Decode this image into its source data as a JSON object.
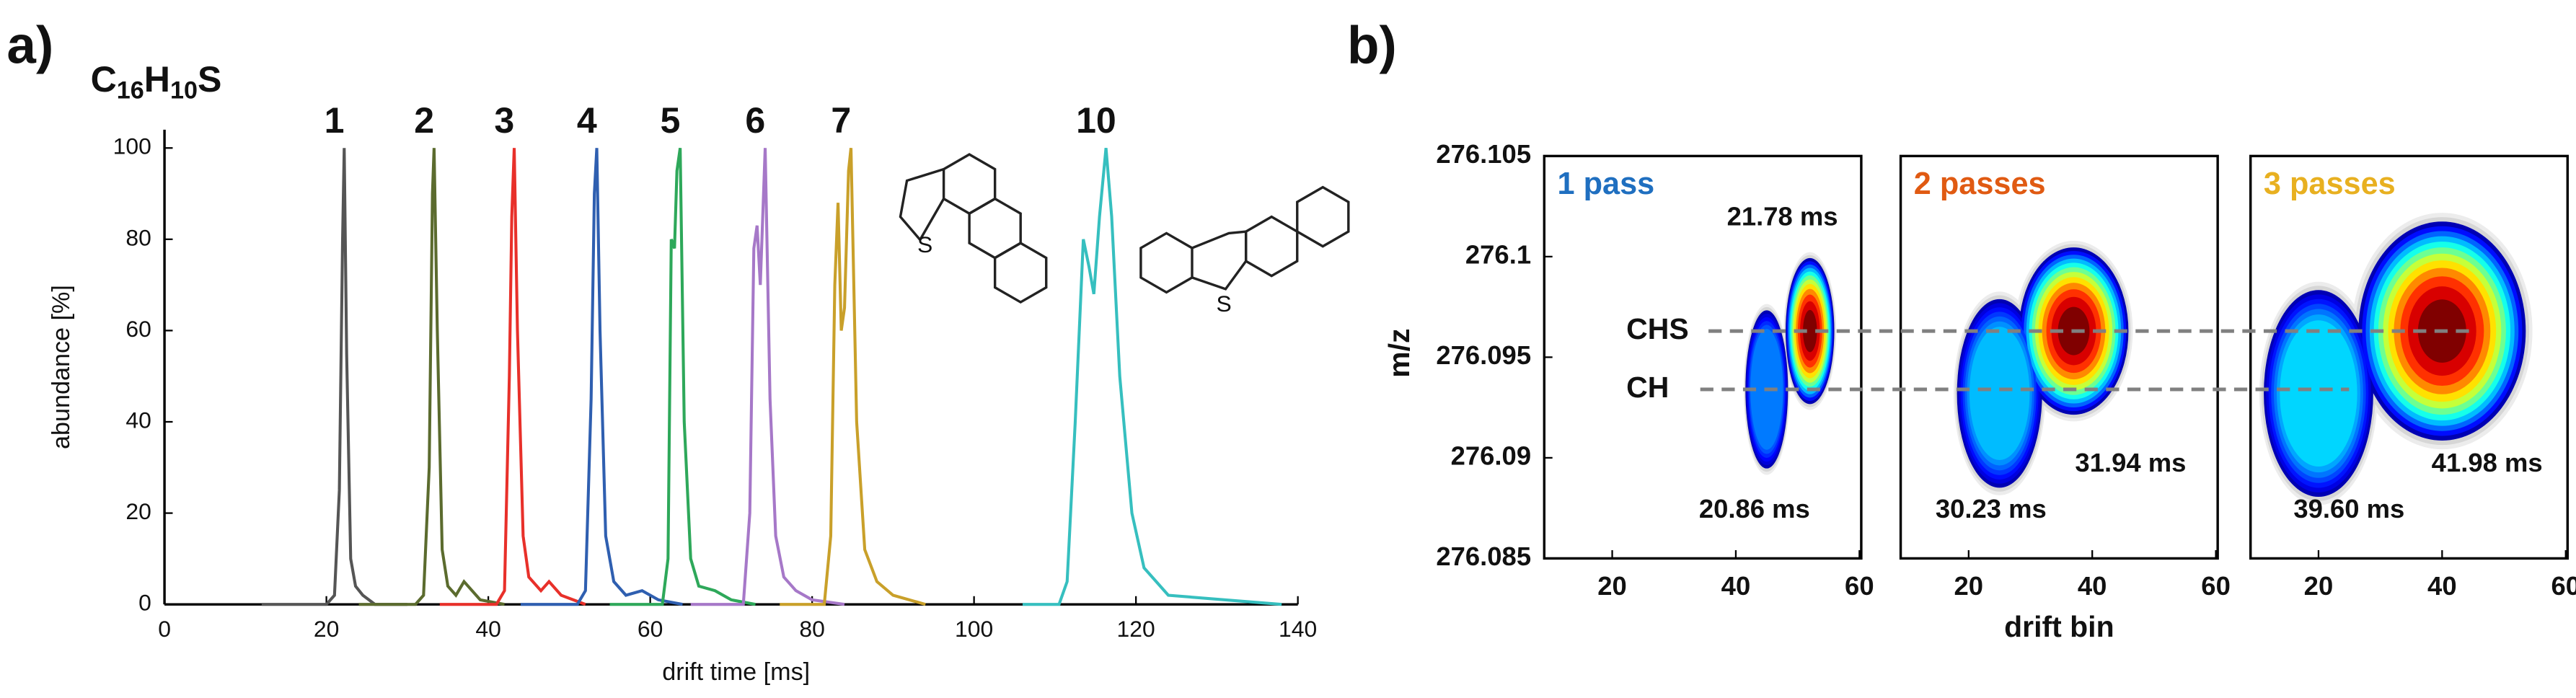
{
  "panel_labels": [
    "a)",
    "b)"
  ],
  "chart_data": [
    {
      "type": "line",
      "title": [
        "C",
        "16",
        "H",
        "10",
        "S"
      ],
      "xlabel": "drift time [ms]",
      "ylabel": "abundance [%]",
      "xlim": [
        0,
        140
      ],
      "xticks": [
        0,
        20,
        40,
        60,
        80,
        100,
        120,
        140
      ],
      "ylim": [
        0,
        104
      ],
      "yticks": [
        0,
        20,
        40,
        60,
        80,
        100
      ],
      "structure_labels": [
        "S",
        "S"
      ],
      "series": [
        {
          "name": "1",
          "color": "#555555",
          "x": [
            12,
            20,
            21,
            21.6,
            22,
            22.2,
            22.5,
            23,
            23.6,
            24.5,
            26,
            30
          ],
          "values": [
            0,
            0,
            2,
            25,
            80,
            100,
            55,
            10,
            4,
            2,
            0,
            0
          ]
        },
        {
          "name": "2",
          "color": "#5b6b2e",
          "x": [
            24,
            31,
            32,
            32.7,
            33.1,
            33.3,
            33.7,
            34.3,
            35,
            36,
            37,
            39,
            42
          ],
          "values": [
            0,
            0,
            2,
            30,
            90,
            100,
            60,
            12,
            4,
            2,
            5,
            1,
            0
          ]
        },
        {
          "name": "3",
          "color": "#e8302a",
          "x": [
            34,
            41,
            42,
            42.6,
            42.9,
            43.2,
            43.6,
            44.3,
            45,
            46.5,
            47.5,
            49,
            52
          ],
          "values": [
            0,
            0,
            3,
            50,
            85,
            100,
            60,
            15,
            6,
            3,
            5,
            2,
            0
          ]
        },
        {
          "name": "4",
          "color": "#2f5fb0",
          "x": [
            44,
            51,
            52,
            52.7,
            53.1,
            53.4,
            53.8,
            54.5,
            55.5,
            57,
            59,
            61,
            64
          ],
          "values": [
            0,
            0,
            3,
            45,
            90,
            100,
            60,
            15,
            5,
            2,
            3,
            1,
            0
          ]
        },
        {
          "name": "5",
          "color": "#2ea85a",
          "x": [
            55,
            61.5,
            62.2,
            62.6,
            63,
            63.3,
            63.7,
            64.2,
            65,
            66,
            68,
            70,
            73
          ],
          "values": [
            0,
            0,
            10,
            80,
            78,
            95,
            100,
            40,
            10,
            4,
            3,
            1,
            0
          ]
        },
        {
          "name": "6",
          "color": "#a678c8",
          "x": [
            65,
            71.5,
            72.3,
            72.8,
            73.2,
            73.6,
            74.2,
            74.8,
            75.5,
            76.5,
            78,
            80,
            84
          ],
          "values": [
            0,
            0,
            20,
            78,
            83,
            70,
            100,
            45,
            15,
            6,
            3,
            1,
            0
          ]
        },
        {
          "name": "7",
          "color": "#c9a02a",
          "x": [
            76,
            81.5,
            82.3,
            82.8,
            83.2,
            83.6,
            84,
            84.5,
            84.8,
            85.5,
            86.5,
            88,
            90,
            94
          ],
          "values": [
            0,
            0,
            15,
            70,
            88,
            60,
            65,
            95,
            100,
            40,
            12,
            5,
            2,
            0
          ]
        },
        {
          "name": "10",
          "color": "#36bfbf",
          "x": [
            106,
            110.5,
            111.5,
            112.5,
            113.5,
            114.2,
            114.8,
            115.5,
            116.3,
            117,
            118,
            119.5,
            121,
            124,
            138
          ],
          "values": [
            0,
            0,
            5,
            40,
            80,
            74,
            68,
            85,
            100,
            85,
            50,
            20,
            8,
            2,
            0
          ]
        }
      ]
    },
    {
      "type": "heatmap",
      "title": "1 pass",
      "title_color": "#1f6fc0",
      "ylabel": "m/z",
      "xlim": [
        9,
        60.3
      ],
      "xticks": [
        20,
        40,
        60
      ],
      "ylim": [
        276.085,
        276.105
      ],
      "yticks": [
        276.085,
        276.09,
        276.095,
        276.1,
        276.105
      ],
      "peaks": {
        "x": [
          45,
          52
        ],
        "y": [
          276.0934,
          276.0963
        ],
        "intensity": [
          0.45,
          1
        ]
      },
      "annotations": [
        "21.78 ms",
        "20.86 ms"
      ],
      "reference_lines": [
        {
          "label": "CHS",
          "y": 276.0963
        },
        {
          "label": "CH",
          "y": 276.0934
        }
      ]
    },
    {
      "type": "heatmap",
      "title": "2 passes",
      "title_color": "#e05a12",
      "xlabel": "drift bin",
      "xlim": [
        9,
        60.3
      ],
      "xticks": [
        20,
        40,
        60
      ],
      "ylim": [
        276.085,
        276.105
      ],
      "peaks": {
        "x": [
          25,
          37
        ],
        "y": [
          276.0932,
          276.0963
        ],
        "intensity": [
          0.5,
          1
        ]
      },
      "annotations": [
        "30.23 ms",
        "31.94 ms"
      ]
    },
    {
      "type": "heatmap",
      "title": "3 passes",
      "title_color": "#e8b020",
      "xlim": [
        9,
        60.3
      ],
      "xticks": [
        20,
        40,
        60
      ],
      "ylim": [
        276.085,
        276.105
      ],
      "peaks": {
        "x": [
          20,
          40
        ],
        "y": [
          276.0932,
          276.0963
        ],
        "intensity": [
          0.55,
          1
        ]
      },
      "annotations": [
        "39.60 ms",
        "41.98 ms"
      ]
    }
  ]
}
